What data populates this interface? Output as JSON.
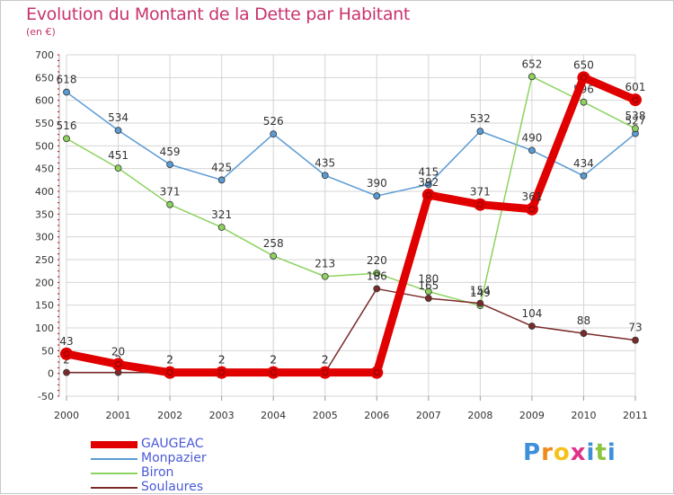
{
  "chart_data": {
    "type": "line",
    "title": "Evolution du Montant de la Dette par Habitant",
    "subtitle": "(en €)",
    "x": [
      "2000",
      "2001",
      "2002",
      "2003",
      "2004",
      "2005",
      "2006",
      "2007",
      "2008",
      "2009",
      "2010",
      "2011"
    ],
    "yticks": [
      "-50",
      "0",
      "50",
      "100",
      "150",
      "200",
      "250",
      "300",
      "350",
      "400",
      "450",
      "500",
      "550",
      "600",
      "650",
      "700"
    ],
    "ylim": [
      -50,
      700
    ],
    "grid": true,
    "legend_position": "bottom-left",
    "series": [
      {
        "name": "Monpazier",
        "color": "#5a9bd5",
        "values": [
          618,
          534,
          459,
          425,
          526,
          435,
          390,
          415,
          532,
          490,
          434,
          527
        ],
        "labels": [
          "618",
          "534",
          "459",
          "425",
          "526",
          "435",
          "390",
          "415",
          "532",
          "490",
          "434",
          "527"
        ]
      },
      {
        "name": "Biron",
        "color": "#8dd35f",
        "values": [
          516,
          451,
          371,
          321,
          258,
          213,
          220,
          180,
          149,
          652,
          596,
          538
        ],
        "labels": [
          "516",
          "451",
          "371",
          "321",
          "258",
          "213",
          "220",
          "180",
          "149",
          "652",
          "596",
          "538"
        ]
      },
      {
        "name": "Soulaures",
        "color": "#7b2a2a",
        "values": [
          2,
          2,
          2,
          2,
          2,
          2,
          186,
          165,
          154,
          104,
          88,
          73
        ],
        "labels": [
          "2",
          "2",
          "2",
          "2",
          "2",
          "2",
          "186",
          "165",
          "154",
          "104",
          "88",
          "73"
        ]
      },
      {
        "name": "GAUGEAC",
        "color": "#e00000",
        "values": [
          43,
          20,
          2,
          2,
          2,
          2,
          2,
          392,
          371,
          361,
          650,
          601
        ],
        "labels": [
          "43",
          "20",
          "2",
          "2",
          "2",
          "2",
          "",
          "392",
          "371",
          "361",
          "650",
          "601"
        ]
      }
    ],
    "legend": [
      {
        "name": "GAUGEAC",
        "color": "#e00000",
        "width": 8
      },
      {
        "name": "Monpazier",
        "color": "#5a9bd5",
        "width": 1.5
      },
      {
        "name": "Biron",
        "color": "#8dd35f",
        "width": 1.5
      },
      {
        "name": "Soulaures",
        "color": "#7b2a2a",
        "width": 1.5
      }
    ]
  },
  "logo": {
    "letters": [
      "P",
      "r",
      "o",
      "x",
      "i",
      "t",
      "i"
    ],
    "colors": [
      "#3d8fd9",
      "#f08a1c",
      "#f5c21b",
      "#e0338a",
      "#3d8fd9",
      "#8cc63f",
      "#3d8fd9"
    ]
  }
}
